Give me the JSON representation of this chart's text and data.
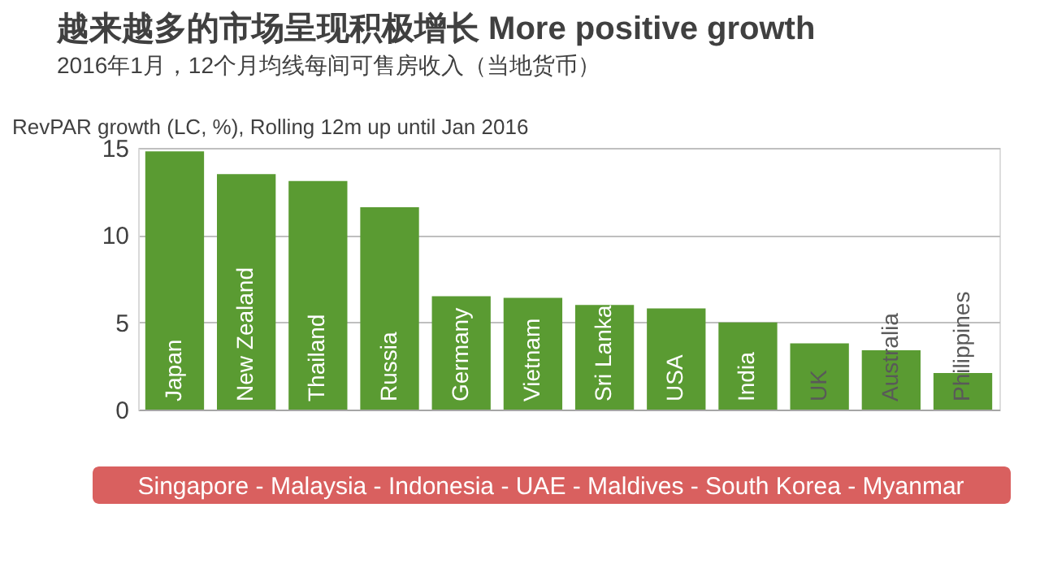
{
  "chart_data": {
    "type": "bar",
    "title": "越来越多的市场呈现积极增长 More positive growth",
    "subtitle": "2016年1月，12个月均线每间可售房收入（当地货币）",
    "ylabel": "RevPAR growth (LC, %), Rolling 12m up until Jan 2016",
    "categories": [
      "Japan",
      "New Zealand",
      "Thailand",
      "Russia",
      "Germany",
      "Vietnam",
      "Sri Lanka",
      "USA",
      "India",
      "UK",
      "Australia",
      "Philippines"
    ],
    "values": [
      14.8,
      13.5,
      13.1,
      11.6,
      6.5,
      6.4,
      6.0,
      5.8,
      5.0,
      3.8,
      3.4,
      2.1
    ],
    "color": "#5a9b32",
    "ylim": [
      0,
      15
    ],
    "yticks": [
      0,
      5,
      10,
      15
    ],
    "grid": "y",
    "tick_labels": "y",
    "annotations": [
      "Singapore - Malaysia - Indonesia - UAE - Maldives - South Korea - Myanmar"
    ]
  }
}
